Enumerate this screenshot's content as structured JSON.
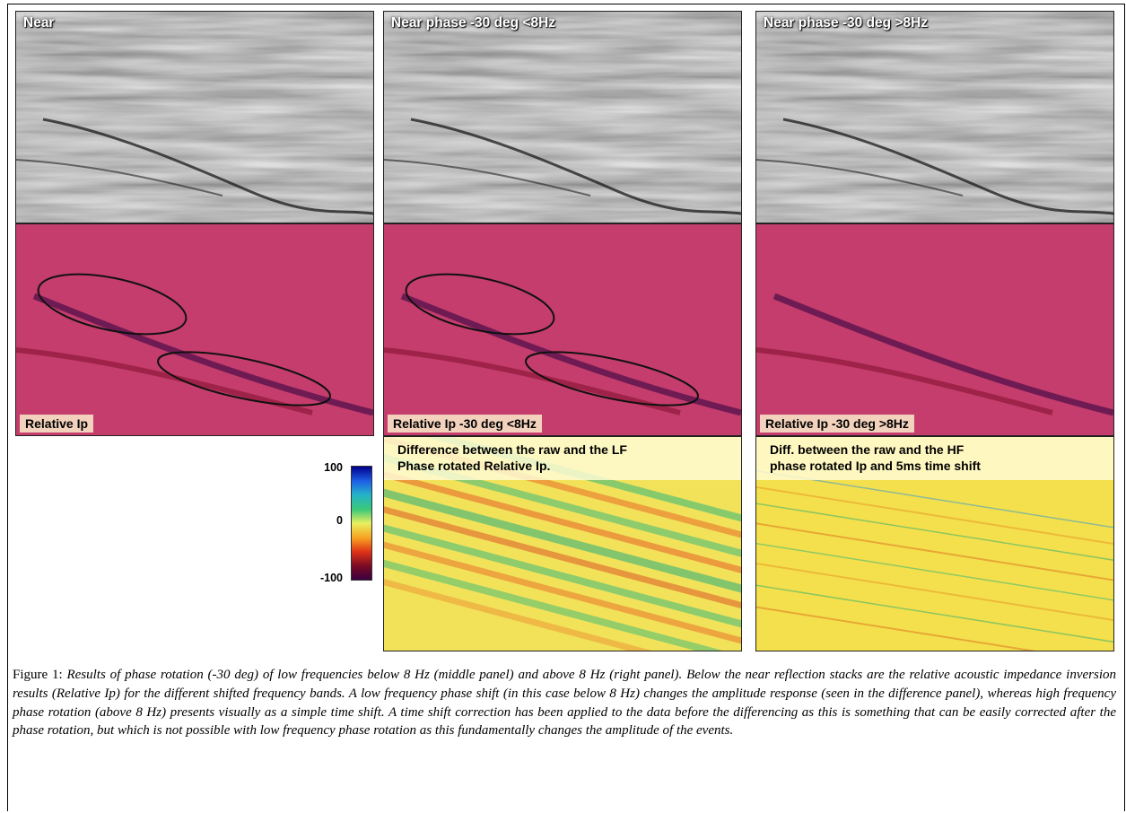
{
  "figure": {
    "panels": [
      {
        "seismic_label": "Near",
        "relative_label": "Relative Ip"
      },
      {
        "seismic_label": "Near phase -30 deg <8Hz",
        "relative_label": "Relative Ip -30 deg <8Hz"
      },
      {
        "seismic_label": "Near phase -30 deg >8Hz",
        "relative_label": "Relative Ip -30 deg >8Hz"
      }
    ],
    "difference_panels": [
      {
        "label": "Difference between the raw and the LF\nPhase rotated Relative Ip."
      },
      {
        "label": "Diff. between the raw and the HF\nphase rotated Ip and 5ms time shift"
      }
    ],
    "colorbar": {
      "max_label": "100",
      "mid_label": "0",
      "min_label": "-100",
      "colors": [
        "#00008b",
        "#1e60e6",
        "#24b3c8",
        "#3cc878",
        "#e8f060",
        "#f7a220",
        "#e03418",
        "#7a0a24",
        "#3a0040"
      ]
    }
  },
  "caption": {
    "label": "Figure 1:",
    "text": "Results of phase rotation (-30 deg) of low frequencies below 8 Hz (middle panel) and above 8 Hz (right panel). Below the near reflection stacks are the relative acoustic impedance inversion results (Relative Ip) for the different shifted frequency bands. A low frequency phase shift (in this case below 8 Hz) changes the amplitude response (seen in the difference panel), whereas high frequency phase rotation (above 8 Hz) presents visually as a simple time shift. A time shift correction has been applied to the data before the differencing as this is something that can be easily corrected after the phase rotation, but which is not possible with low frequency phase rotation as this fundamentally changes the amplitude of the events."
  }
}
